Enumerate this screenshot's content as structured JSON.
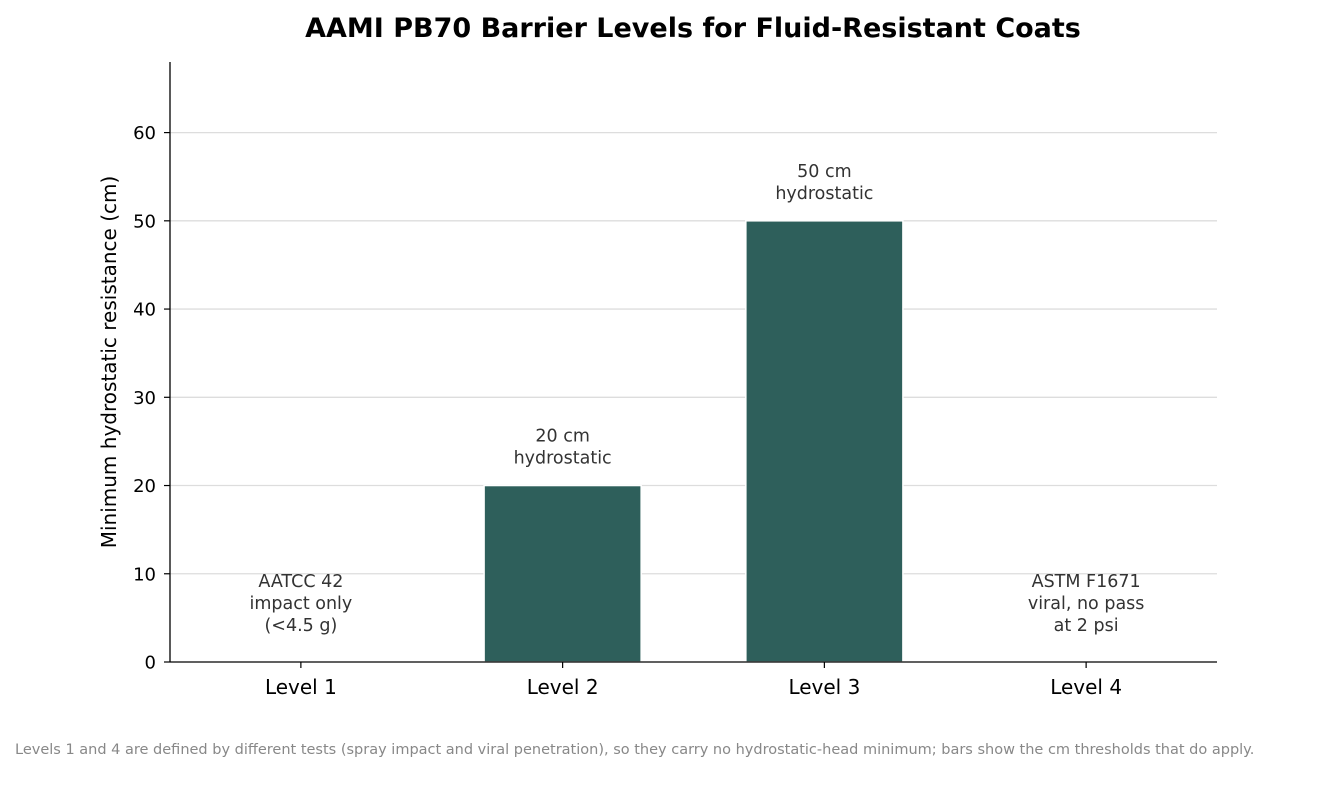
{
  "chart_data": {
    "type": "bar",
    "title": "AAMI PB70 Barrier Levels for Fluid-Resistant Coats",
    "xlabel": "",
    "ylabel": "Minimum hydrostatic resistance (cm)",
    "categories": [
      "Level 1",
      "Level 2",
      "Level 3",
      "Level 4"
    ],
    "values": [
      0,
      20,
      50,
      0
    ],
    "ylim": [
      0,
      68
    ],
    "yticks": [
      0,
      10,
      20,
      30,
      40,
      50,
      60
    ],
    "grid": "horizontal",
    "bar_color": "#2e5f5b",
    "annotations": [
      {
        "category": "Level 1",
        "y": 3.5,
        "lines": [
          "AATCC 42",
          "impact only",
          "(<4.5 g)"
        ]
      },
      {
        "category": "Level 2",
        "y": 22.5,
        "lines": [
          "20 cm",
          "hydrostatic"
        ]
      },
      {
        "category": "Level 3",
        "y": 52.5,
        "lines": [
          "50 cm",
          "hydrostatic"
        ]
      },
      {
        "category": "Level 4",
        "y": 3.5,
        "lines": [
          "ASTM F1671",
          "viral, no pass",
          "at 2 psi"
        ]
      }
    ]
  },
  "caption": "Levels 1 and 4 are defined by different tests (spray impact and viral penetration), so they carry no hydrostatic-head minimum; bars show the cm thresholds that do apply."
}
